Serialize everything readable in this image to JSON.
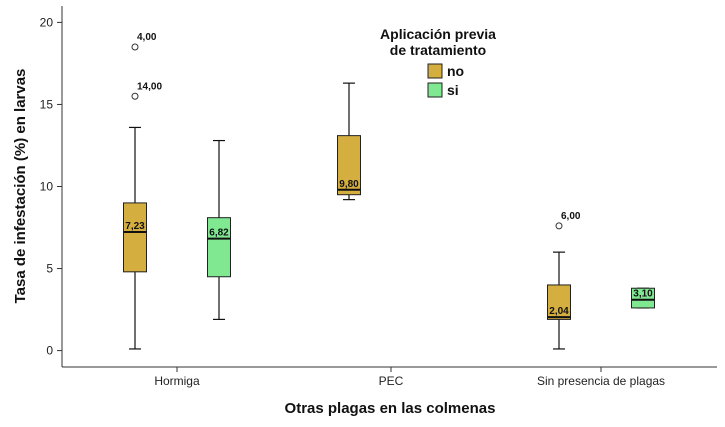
{
  "chart_data": {
    "type": "boxplot",
    "xlabel": "Otras plagas en las colmenas",
    "ylabel": "Tasa de infestación (%) en larvas",
    "ylim": [
      -1,
      21
    ],
    "yticks": [
      0,
      5,
      10,
      15,
      20
    ],
    "categories": [
      "Hormiga",
      "PEC",
      "Sin presencia de plagas"
    ],
    "legend": {
      "title_line1": "Aplicación previa",
      "title_line2": "de tratamiento",
      "placement": "top-center",
      "entries": [
        {
          "name": "no",
          "color": "#D4AE3F"
        },
        {
          "name": "si",
          "color": "#7FE891"
        }
      ]
    },
    "boxes": [
      {
        "category": "Hormiga",
        "group": "no",
        "min": 0.1,
        "q1": 4.8,
        "median": 7.23,
        "q3": 9.0,
        "max": 13.6,
        "median_label": "7,23",
        "outliers": [
          {
            "y": 18.5,
            "label": "4,00"
          },
          {
            "y": 15.5,
            "label": "14,00"
          }
        ]
      },
      {
        "category": "Hormiga",
        "group": "si",
        "min": 1.9,
        "q1": 4.5,
        "median": 6.82,
        "q3": 8.1,
        "max": 12.8,
        "median_label": "6,82",
        "outliers": []
      },
      {
        "category": "PEC",
        "group": "no",
        "min": 9.2,
        "q1": 9.5,
        "median": 9.8,
        "q3": 13.1,
        "max": 16.3,
        "median_label": "9,80",
        "outliers": []
      },
      {
        "category": "Sin presencia de plagas",
        "group": "no",
        "min": 0.1,
        "q1": 1.9,
        "median": 2.04,
        "q3": 4.0,
        "max": 6.0,
        "median_label": "2,04",
        "outliers": [
          {
            "y": 7.6,
            "label": "6,00"
          }
        ]
      },
      {
        "category": "Sin presencia de plagas",
        "group": "si",
        "min": 2.6,
        "q1": 2.6,
        "median": 3.1,
        "q3": 3.8,
        "max": 3.8,
        "median_label": "3,10",
        "outliers": []
      }
    ]
  }
}
